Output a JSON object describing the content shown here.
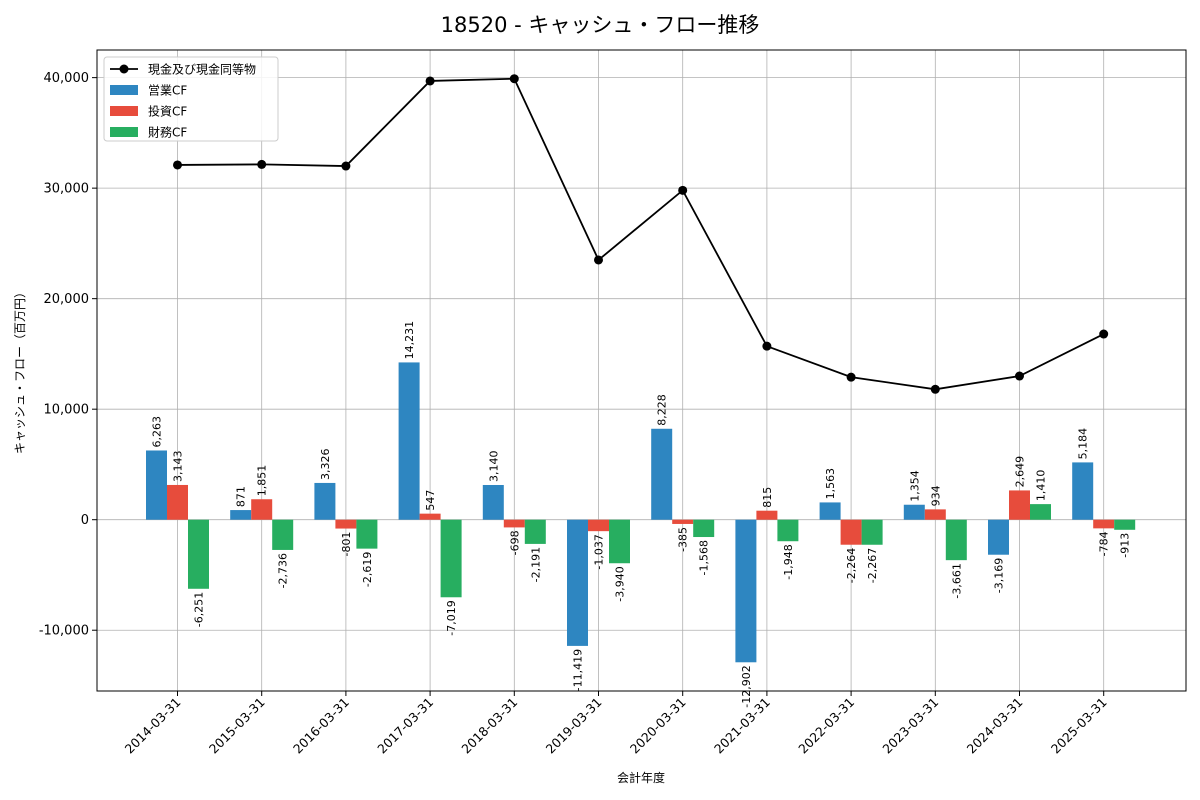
{
  "chart_data": {
    "type": "bar",
    "title": "18520 - キャッシュ・フロー推移",
    "xlabel": "会計年度",
    "ylabel": "キャッシュ・フロー（百万円）",
    "ylim": [
      -15500,
      42500
    ],
    "yticks": [
      -10000,
      0,
      10000,
      20000,
      30000,
      40000
    ],
    "ytick_labels": [
      "-10,000",
      "0",
      "10,000",
      "20,000",
      "30,000",
      "40,000"
    ],
    "grid": true,
    "legend_position": "top-left",
    "categories": [
      "2014-03-31",
      "2015-03-31",
      "2016-03-31",
      "2017-03-31",
      "2018-03-31",
      "2019-03-31",
      "2020-03-31",
      "2021-03-31",
      "2022-03-31",
      "2023-03-31",
      "2024-03-31",
      "2025-03-31"
    ],
    "series": [
      {
        "name": "営業CF",
        "kind": "bar",
        "color": "#2e86c1",
        "values": [
          6263,
          871,
          3326,
          14231,
          3140,
          -11419,
          8228,
          -12902,
          1563,
          1354,
          -3169,
          5184
        ],
        "labels": [
          "6,263",
          "871",
          "3,326",
          "14,231",
          "3,140",
          "-11,419",
          "8,228",
          "-12,902",
          "1,563",
          "1,354",
          "-3,169",
          "5,184"
        ]
      },
      {
        "name": "投資CF",
        "kind": "bar",
        "color": "#e74c3c",
        "values": [
          3143,
          1851,
          -801,
          547,
          -698,
          -1037,
          -385,
          815,
          -2264,
          934,
          2649,
          -784
        ],
        "labels": [
          "3,143",
          "1,851",
          "-801",
          "547",
          "-698",
          "-1,037",
          "-385",
          "815",
          "-2,264",
          "934",
          "2,649",
          "-784"
        ]
      },
      {
        "name": "財務CF",
        "kind": "bar",
        "color": "#27ae60",
        "values": [
          -6251,
          -2736,
          -2619,
          -7019,
          -2191,
          -3940,
          -1568,
          -1948,
          -2267,
          -3661,
          1410,
          -913
        ],
        "labels": [
          "-6,251",
          "-2,736",
          "-2,619",
          "-7,019",
          "-2,191",
          "-3,940",
          "-1,568",
          "-1,948",
          "-2,267",
          "-3,661",
          "1,410",
          "-913"
        ]
      },
      {
        "name": "現金及び現金同等物",
        "kind": "line",
        "color": "#000000",
        "values": [
          32100,
          32150,
          32000,
          39700,
          39900,
          23500,
          29800,
          15700,
          12900,
          11800,
          13000,
          16800
        ]
      }
    ]
  }
}
